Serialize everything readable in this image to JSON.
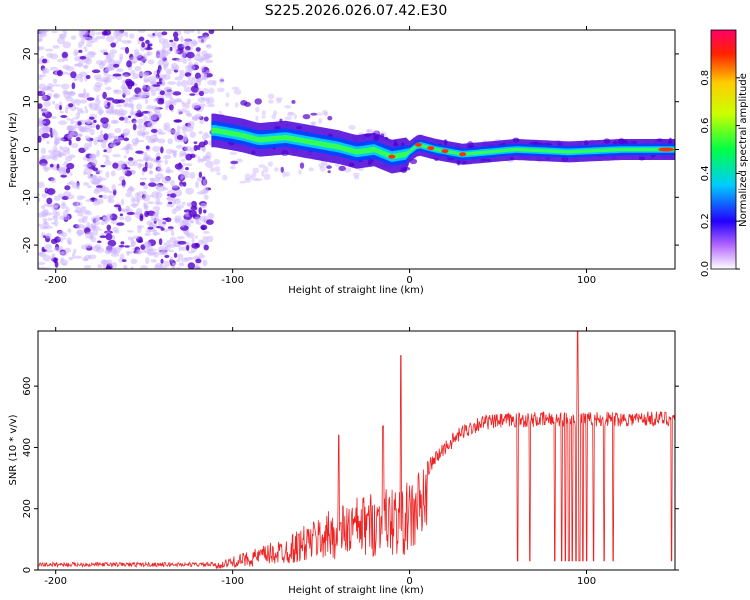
{
  "page_title": "S225.2026.026.07.42.E30",
  "colors": {
    "snr_line": "#ee2222",
    "spec_dark": "#5500cc",
    "spec_light": "#cbb2ff"
  },
  "chart_data": [
    {
      "id": "spectrogram",
      "type": "heatmap",
      "title": "S225.2026.026.07.42.E30",
      "xlabel": "Height of straight line (km)",
      "ylabel": "Frequency (Hz)",
      "xlim": [
        -210,
        150
      ],
      "ylim": [
        -25,
        25
      ],
      "xticks": [
        -200,
        -100,
        0,
        100
      ],
      "xtick_labels": [
        "-200",
        "-100",
        "0",
        "100"
      ],
      "yticks": [
        -20,
        -10,
        0,
        10,
        20
      ],
      "ytick_labels": [
        "-20",
        "-10",
        "0",
        "10",
        "20"
      ],
      "colorbar": {
        "label": "Normalized spectral amplitude",
        "range": [
          0,
          1
        ],
        "ticks": [
          0.0,
          0.2,
          0.4,
          0.6,
          0.8
        ],
        "tick_labels": [
          "0.0",
          "0.2",
          "0.4",
          "0.6",
          "0.8"
        ]
      },
      "noise_region_x": [
        -210,
        -112
      ],
      "ridge": [
        {
          "x": -110,
          "y": 4
        },
        {
          "x": -95,
          "y": 3
        },
        {
          "x": -85,
          "y": 2
        },
        {
          "x": -70,
          "y": 2.5
        },
        {
          "x": -55,
          "y": 1.5
        },
        {
          "x": -40,
          "y": 0.5
        },
        {
          "x": -30,
          "y": -0.5
        },
        {
          "x": -20,
          "y": 0
        },
        {
          "x": -10,
          "y": -1.5
        },
        {
          "x": -2,
          "y": -1
        },
        {
          "x": 5,
          "y": 1
        },
        {
          "x": 15,
          "y": 0
        },
        {
          "x": 30,
          "y": -1
        },
        {
          "x": 60,
          "y": 0
        },
        {
          "x": 90,
          "y": -0.5
        },
        {
          "x": 120,
          "y": 0
        },
        {
          "x": 150,
          "y": 0
        }
      ]
    },
    {
      "id": "snr",
      "type": "line",
      "xlabel": "Height of straight line (km)",
      "ylabel": "SNR (10 * v/v)",
      "xlim": [
        -210,
        150
      ],
      "ylim": [
        0,
        780
      ],
      "xticks": [
        -200,
        -100,
        0,
        100
      ],
      "xtick_labels": [
        "-200",
        "-100",
        "0",
        "100"
      ],
      "yticks": [
        0,
        200,
        400,
        600
      ],
      "ytick_labels": [
        "0",
        "200",
        "400",
        "600"
      ],
      "envelope": [
        {
          "x": -210,
          "y": 18
        },
        {
          "x": -110,
          "y": 18
        },
        {
          "x": -95,
          "y": 45
        },
        {
          "x": -70,
          "y": 90
        },
        {
          "x": -50,
          "y": 150
        },
        {
          "x": -30,
          "y": 200
        },
        {
          "x": -10,
          "y": 230
        },
        {
          "x": 0,
          "y": 240
        },
        {
          "x": 10,
          "y": 330
        },
        {
          "x": 20,
          "y": 400
        },
        {
          "x": 30,
          "y": 450
        },
        {
          "x": 40,
          "y": 480
        },
        {
          "x": 60,
          "y": 490
        },
        {
          "x": 150,
          "y": 495
        }
      ],
      "spikes": [
        {
          "x": -40,
          "y": 440
        },
        {
          "x": -15,
          "y": 470
        },
        {
          "x": -5,
          "y": 700
        },
        {
          "x": 95,
          "y": 780
        }
      ],
      "dropouts_x": [
        61,
        68,
        82,
        86,
        88,
        90,
        92,
        94,
        96,
        98,
        100,
        104,
        110,
        115,
        148
      ]
    }
  ]
}
